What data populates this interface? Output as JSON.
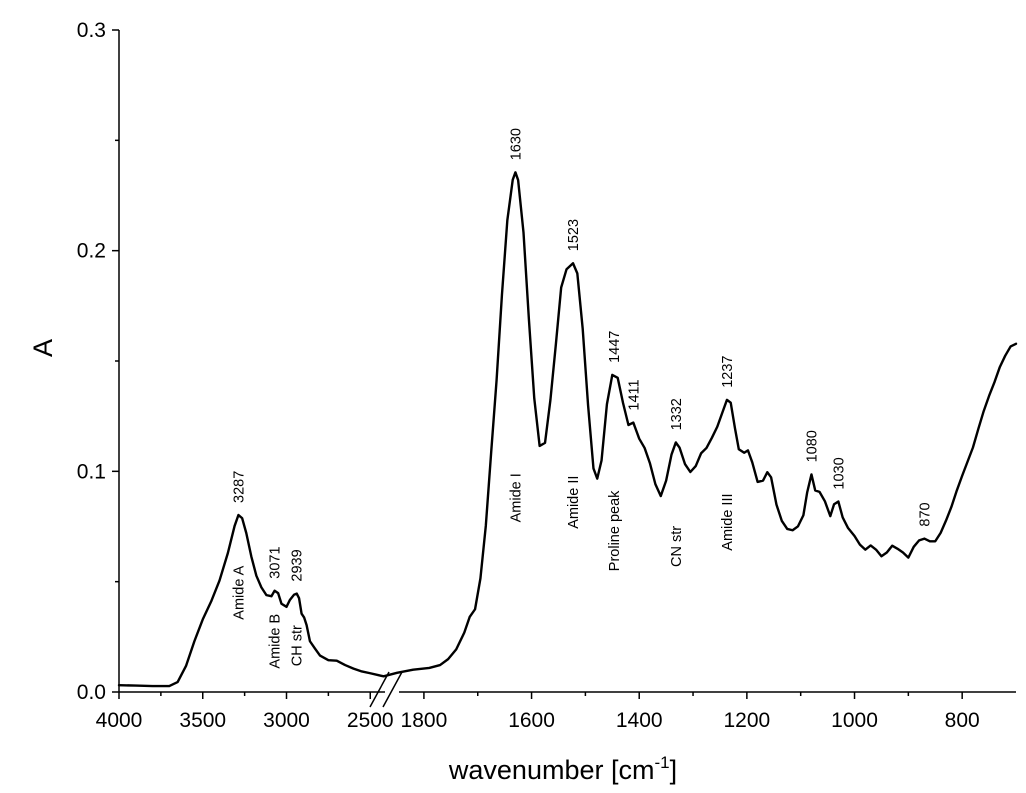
{
  "chart_data": {
    "type": "line",
    "xlabel": "wavenumber [cm",
    "xlabel_sup": "-1",
    "xlabel_close": "]",
    "ylabel": "A",
    "ylim": [
      0,
      0.3
    ],
    "y_ticks": [
      {
        "value": 0.0,
        "label": "0.0"
      },
      {
        "value": 0.1,
        "label": "0.1"
      },
      {
        "value": 0.2,
        "label": "0.2"
      },
      {
        "value": 0.3,
        "label": "0.3"
      }
    ],
    "x_axis_broken": true,
    "x_segments": [
      {
        "from": 4000,
        "to": 2400
      },
      {
        "from": 1850,
        "to": 700
      }
    ],
    "x_ticks": [
      {
        "value": 4000,
        "label": "4000"
      },
      {
        "value": 3500,
        "label": "3500"
      },
      {
        "value": 3000,
        "label": "3000"
      },
      {
        "value": 2500,
        "label": "2500"
      },
      {
        "value": 1800,
        "label": "1800"
      },
      {
        "value": 1600,
        "label": "1600"
      },
      {
        "value": 1400,
        "label": "1400"
      },
      {
        "value": 1200,
        "label": "1200"
      },
      {
        "value": 1000,
        "label": "1000"
      },
      {
        "value": 800,
        "label": "800"
      }
    ],
    "series": [
      {
        "color": "#000000",
        "points": [
          [
            4000,
            0.0031
          ],
          [
            3900,
            0.0029
          ],
          [
            3800,
            0.0027
          ],
          [
            3700,
            0.0027
          ],
          [
            3650,
            0.0045
          ],
          [
            3600,
            0.0118
          ],
          [
            3550,
            0.023
          ],
          [
            3500,
            0.0329
          ],
          [
            3450,
            0.041
          ],
          [
            3400,
            0.0505
          ],
          [
            3350,
            0.063
          ],
          [
            3310,
            0.0752
          ],
          [
            3287,
            0.0802
          ],
          [
            3265,
            0.0788
          ],
          [
            3240,
            0.072
          ],
          [
            3210,
            0.0614
          ],
          [
            3180,
            0.0527
          ],
          [
            3150,
            0.0474
          ],
          [
            3120,
            0.0439
          ],
          [
            3090,
            0.0434
          ],
          [
            3071,
            0.0459
          ],
          [
            3050,
            0.0448
          ],
          [
            3030,
            0.04
          ],
          [
            3000,
            0.0386
          ],
          [
            2980,
            0.0417
          ],
          [
            2955,
            0.0441
          ],
          [
            2939,
            0.0446
          ],
          [
            2925,
            0.0425
          ],
          [
            2910,
            0.0355
          ],
          [
            2895,
            0.0338
          ],
          [
            2880,
            0.0303
          ],
          [
            2860,
            0.023
          ],
          [
            2830,
            0.0197
          ],
          [
            2800,
            0.0165
          ],
          [
            2750,
            0.0144
          ],
          [
            2700,
            0.0142
          ],
          [
            2650,
            0.0122
          ],
          [
            2600,
            0.0106
          ],
          [
            2550,
            0.0093
          ],
          [
            2500,
            0.0085
          ],
          [
            2450,
            0.0076
          ],
          [
            2420,
            0.0071
          ],
          [
            1850,
            0.0087
          ],
          [
            1820,
            0.0101
          ],
          [
            1790,
            0.0109
          ],
          [
            1770,
            0.0122
          ],
          [
            1755,
            0.0149
          ],
          [
            1740,
            0.0193
          ],
          [
            1725,
            0.0269
          ],
          [
            1715,
            0.034
          ],
          [
            1705,
            0.0375
          ],
          [
            1695,
            0.0515
          ],
          [
            1685,
            0.0753
          ],
          [
            1675,
            0.1088
          ],
          [
            1665,
            0.1413
          ],
          [
            1655,
            0.1801
          ],
          [
            1645,
            0.2138
          ],
          [
            1635,
            0.2321
          ],
          [
            1630,
            0.2355
          ],
          [
            1625,
            0.232
          ],
          [
            1615,
            0.2083
          ],
          [
            1605,
            0.1691
          ],
          [
            1595,
            0.1331
          ],
          [
            1585,
            0.1115
          ],
          [
            1575,
            0.1129
          ],
          [
            1565,
            0.1323
          ],
          [
            1555,
            0.1572
          ],
          [
            1545,
            0.1833
          ],
          [
            1535,
            0.1916
          ],
          [
            1523,
            0.1943
          ],
          [
            1515,
            0.1897
          ],
          [
            1505,
            0.1646
          ],
          [
            1495,
            0.1299
          ],
          [
            1485,
            0.1013
          ],
          [
            1478,
            0.0967
          ],
          [
            1470,
            0.1049
          ],
          [
            1460,
            0.1304
          ],
          [
            1450,
            0.1437
          ],
          [
            1440,
            0.1424
          ],
          [
            1430,
            0.1309
          ],
          [
            1420,
            0.121
          ],
          [
            1411,
            0.1221
          ],
          [
            1400,
            0.1148
          ],
          [
            1390,
            0.1106
          ],
          [
            1380,
            0.1036
          ],
          [
            1370,
            0.0942
          ],
          [
            1360,
            0.0888
          ],
          [
            1350,
            0.0958
          ],
          [
            1340,
            0.1076
          ],
          [
            1332,
            0.1131
          ],
          [
            1325,
            0.1107
          ],
          [
            1315,
            0.1033
          ],
          [
            1305,
            0.0997
          ],
          [
            1295,
            0.1024
          ],
          [
            1285,
            0.1082
          ],
          [
            1275,
            0.1106
          ],
          [
            1265,
            0.1152
          ],
          [
            1255,
            0.1202
          ],
          [
            1245,
            0.127
          ],
          [
            1237,
            0.1324
          ],
          [
            1230,
            0.1311
          ],
          [
            1222,
            0.1194
          ],
          [
            1215,
            0.11
          ],
          [
            1205,
            0.1084
          ],
          [
            1198,
            0.1095
          ],
          [
            1190,
            0.1041
          ],
          [
            1180,
            0.0952
          ],
          [
            1170,
            0.0958
          ],
          [
            1162,
            0.0996
          ],
          [
            1155,
            0.0973
          ],
          [
            1145,
            0.0849
          ],
          [
            1135,
            0.0775
          ],
          [
            1125,
            0.0739
          ],
          [
            1115,
            0.0733
          ],
          [
            1105,
            0.0751
          ],
          [
            1095,
            0.0801
          ],
          [
            1088,
            0.0904
          ],
          [
            1080,
            0.0986
          ],
          [
            1073,
            0.0913
          ],
          [
            1065,
            0.0907
          ],
          [
            1055,
            0.0864
          ],
          [
            1045,
            0.0797
          ],
          [
            1038,
            0.0851
          ],
          [
            1030,
            0.0863
          ],
          [
            1022,
            0.0791
          ],
          [
            1012,
            0.0743
          ],
          [
            1000,
            0.0707
          ],
          [
            990,
            0.0668
          ],
          [
            980,
            0.0645
          ],
          [
            970,
            0.0664
          ],
          [
            960,
            0.0645
          ],
          [
            950,
            0.0615
          ],
          [
            940,
            0.0632
          ],
          [
            930,
            0.0663
          ],
          [
            920,
            0.0649
          ],
          [
            910,
            0.0632
          ],
          [
            900,
            0.0609
          ],
          [
            890,
            0.0658
          ],
          [
            880,
            0.0687
          ],
          [
            870,
            0.0695
          ],
          [
            860,
            0.0683
          ],
          [
            850,
            0.0683
          ],
          [
            840,
            0.0721
          ],
          [
            830,
            0.0777
          ],
          [
            820,
            0.0839
          ],
          [
            810,
            0.0913
          ],
          [
            800,
            0.098
          ],
          [
            790,
            0.1044
          ],
          [
            780,
            0.1108
          ],
          [
            770,
            0.1192
          ],
          [
            760,
            0.1273
          ],
          [
            750,
            0.1342
          ],
          [
            740,
            0.1404
          ],
          [
            730,
            0.1473
          ],
          [
            720,
            0.1524
          ],
          [
            710,
            0.1566
          ],
          [
            700,
            0.1578
          ]
        ]
      }
    ],
    "peak_labels": [
      {
        "x": 3287,
        "y": 0.0802,
        "text": "3287"
      },
      {
        "x": 3071,
        "y": 0.0459,
        "text": "3071"
      },
      {
        "x": 2939,
        "y": 0.0446,
        "text": "2939"
      },
      {
        "x": 1630,
        "y": 0.2355,
        "text": "1630"
      },
      {
        "x": 1523,
        "y": 0.1943,
        "text": "1523"
      },
      {
        "x": 1447,
        "y": 0.1437,
        "text": "1447"
      },
      {
        "x": 1411,
        "y": 0.1221,
        "text": "1411"
      },
      {
        "x": 1332,
        "y": 0.1131,
        "text": "1332"
      },
      {
        "x": 1237,
        "y": 0.1324,
        "text": "1237"
      },
      {
        "x": 1080,
        "y": 0.0986,
        "text": "1080"
      },
      {
        "x": 1030,
        "y": 0.0863,
        "text": "1030"
      },
      {
        "x": 870,
        "y": 0.0695,
        "text": "870"
      }
    ],
    "band_labels": [
      {
        "x": 3287,
        "y": 0.045,
        "text": "Amide A"
      },
      {
        "x": 3071,
        "y": 0.023,
        "text": "Amide B"
      },
      {
        "x": 2939,
        "y": 0.021,
        "text": "CH str"
      },
      {
        "x": 1630,
        "y": 0.088,
        "text": "Amide I"
      },
      {
        "x": 1523,
        "y": 0.086,
        "text": "Amide II"
      },
      {
        "x": 1447,
        "y": 0.073,
        "text": "Proline peak"
      },
      {
        "x": 1332,
        "y": 0.066,
        "text": "CN str"
      },
      {
        "x": 1237,
        "y": 0.077,
        "text": "Amide III"
      }
    ]
  }
}
